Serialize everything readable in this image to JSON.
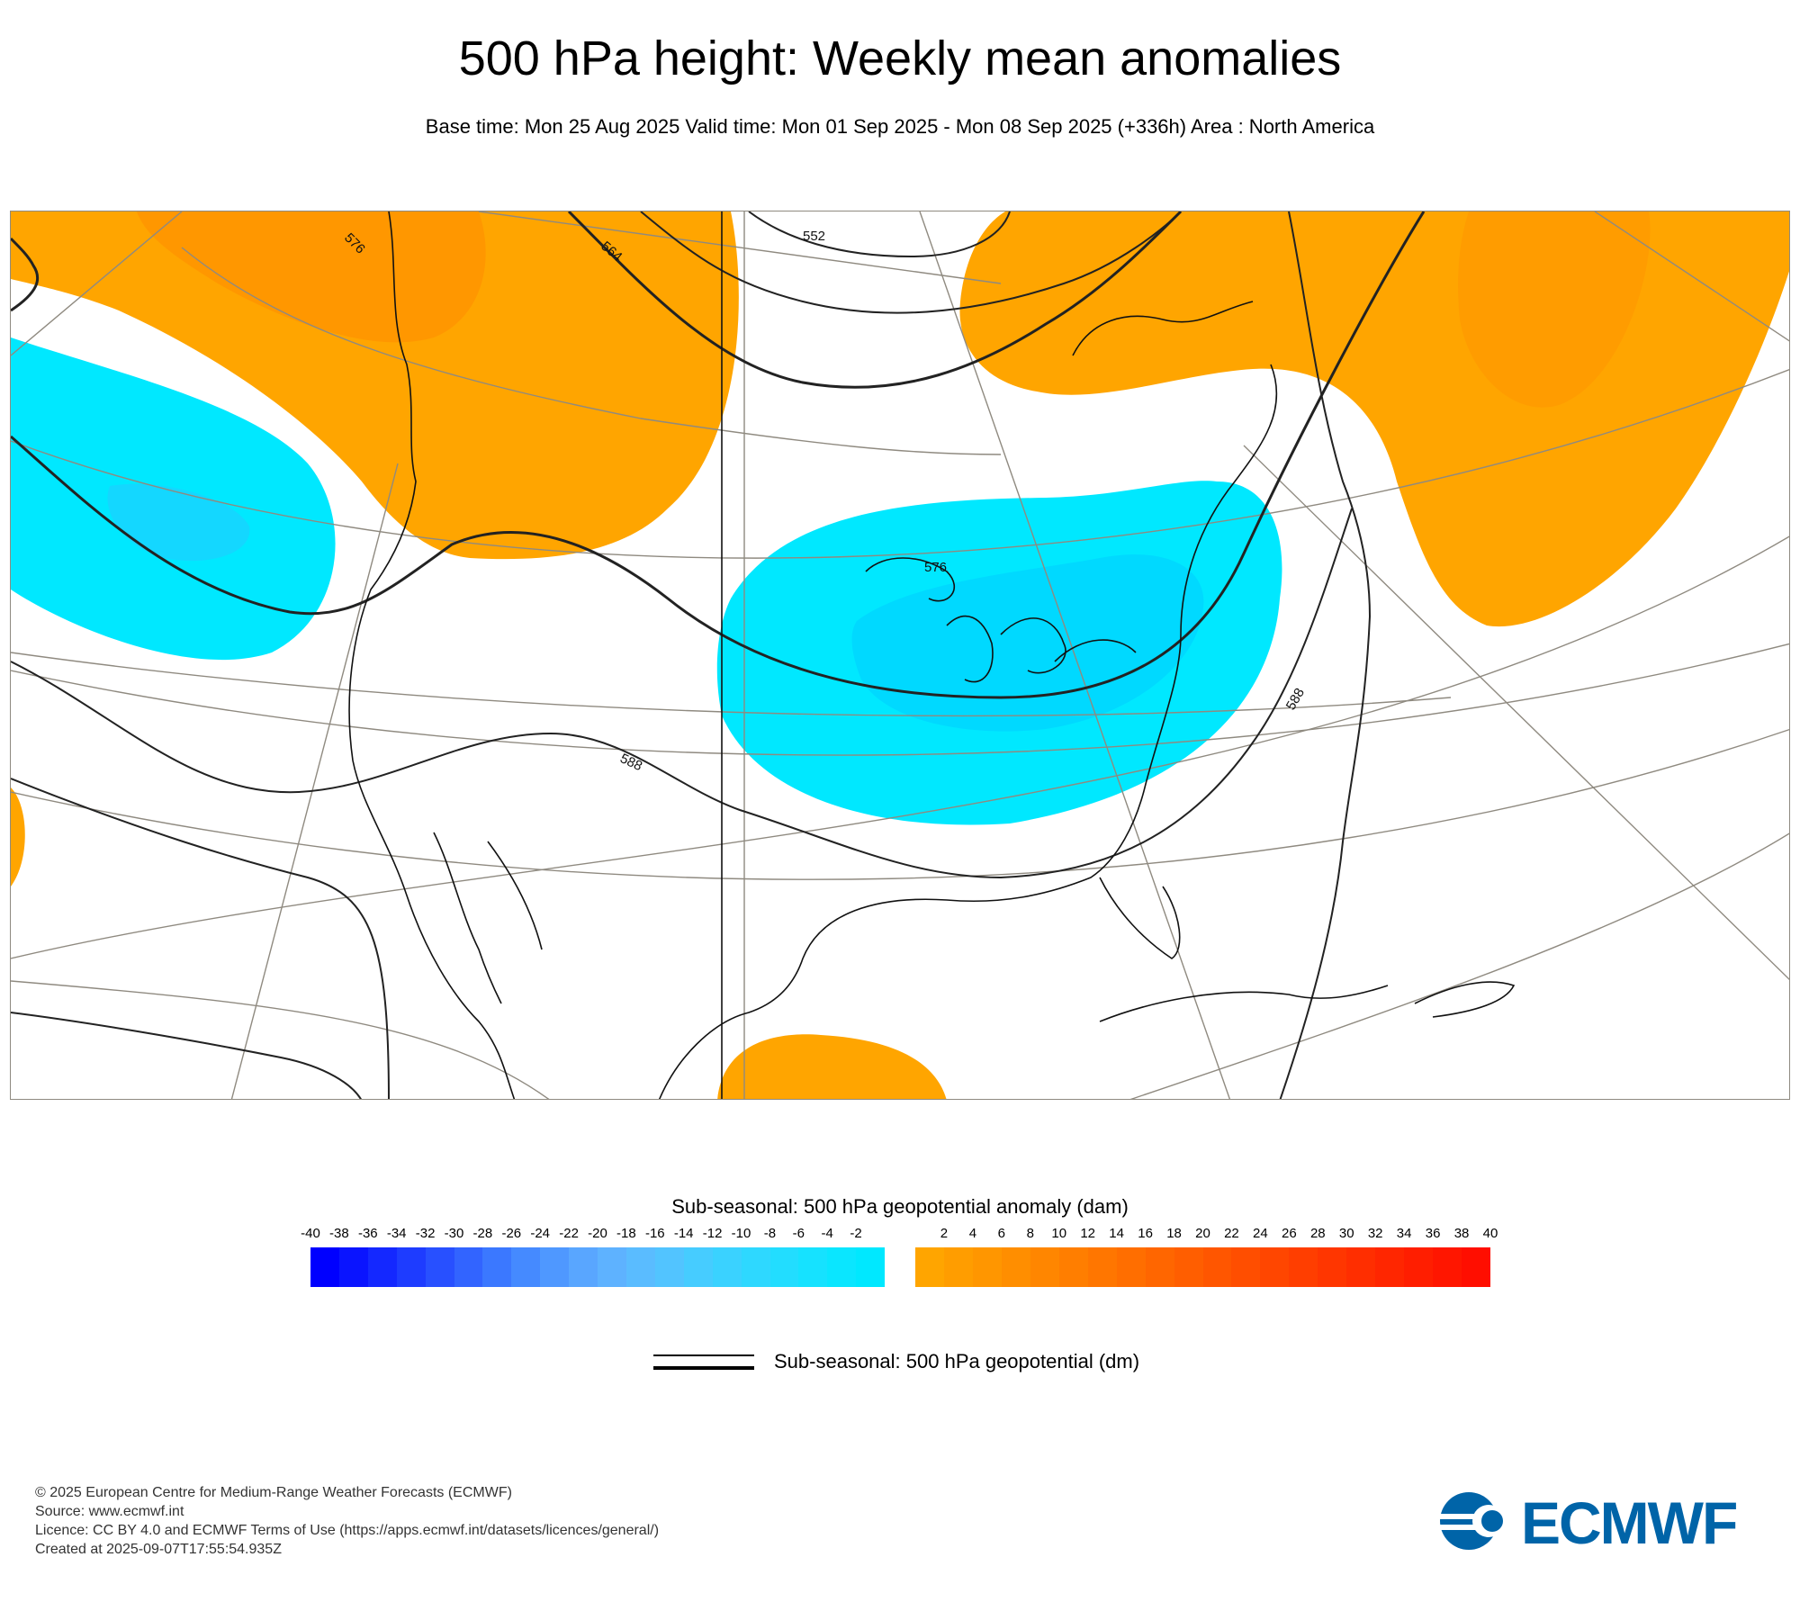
{
  "title": "500 hPa height: Weekly mean anomalies",
  "subtitle": "Base time: Mon 25 Aug 2025 Valid time: Mon 01 Sep 2025 - Mon 08 Sep 2025 (+336h) Area : North America",
  "contour_labels": [
    "576",
    "564",
    "552",
    "576",
    "588",
    "588"
  ],
  "colorbar": {
    "title": "Sub-seasonal: 500 hPa geopotential anomaly (dam)",
    "negative_ticks": [
      "-40",
      "-38",
      "-36",
      "-34",
      "-32",
      "-30",
      "-28",
      "-26",
      "-24",
      "-22",
      "-20",
      "-18",
      "-16",
      "-14",
      "-12",
      "-10",
      "-8",
      "-6",
      "-4",
      "-2"
    ],
    "positive_ticks": [
      "2",
      "4",
      "6",
      "8",
      "10",
      "12",
      "14",
      "16",
      "18",
      "20",
      "22",
      "24",
      "26",
      "28",
      "30",
      "32",
      "34",
      "36",
      "38",
      "40"
    ],
    "negative_colors": [
      "#0000ff",
      "#0a14ff",
      "#1428ff",
      "#1e3cff",
      "#2850ff",
      "#3264ff",
      "#3b78ff",
      "#458aff",
      "#4f98ff",
      "#59a6ff",
      "#5eb2ff",
      "#5abcff",
      "#52c4ff",
      "#46ccff",
      "#3ad2ff",
      "#2ed8ff",
      "#22ddff",
      "#16e2ff",
      "#0ae6ff",
      "#00e8ff"
    ],
    "positive_colors": [
      "#ffa500",
      "#ff9d00",
      "#ff9600",
      "#ff8e00",
      "#ff8600",
      "#ff7e00",
      "#ff7600",
      "#ff6e00",
      "#ff6600",
      "#ff5e00",
      "#ff5600",
      "#ff4e00",
      "#ff4600",
      "#ff3e00",
      "#ff3600",
      "#ff2e00",
      "#ff2600",
      "#ff1e00",
      "#ff1600",
      "#ff0e00"
    ]
  },
  "legend": {
    "line_label": "Sub-seasonal: 500 hPa geopotential (dm)"
  },
  "footer": {
    "line1": "© 2025 European Centre for Medium-Range Weather Forecasts (ECMWF)",
    "line2": "Source: www.ecmwf.int",
    "line3": "Licence: CC BY 4.0 and ECMWF Terms of Use (https://apps.ecmwf.int/datasets/licences/general/)",
    "line4": "Created at 2025-09-07T17:55:54.935Z"
  },
  "logo_text": "ECMWF",
  "colors": {
    "positive_anomaly": "#ffa500",
    "positive_strong": "#ff8000",
    "negative_anomaly": "#00e8ff",
    "negative_strong": "#00ccff",
    "graticule": "#8f8a80",
    "logo": "#0064a8"
  }
}
